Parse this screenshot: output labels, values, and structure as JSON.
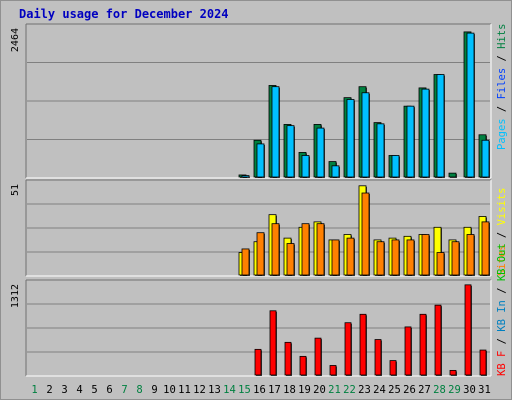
{
  "title": "Daily usage for December 2024",
  "days": [
    "1",
    "2",
    "3",
    "4",
    "5",
    "6",
    "7",
    "8",
    "9",
    "10",
    "11",
    "12",
    "13",
    "14",
    "15",
    "16",
    "17",
    "18",
    "19",
    "20",
    "21",
    "22",
    "23",
    "24",
    "25",
    "26",
    "27",
    "28",
    "29",
    "30",
    "31"
  ],
  "weekend_days": [
    "1",
    "7",
    "8",
    "14",
    "15",
    "21",
    "22",
    "28",
    "29"
  ],
  "colors": {
    "hits": "#008040",
    "files": "#0040FF",
    "pages": "#00C0FF",
    "visits": "#FFFF00",
    "sites": "#FF8000",
    "kb_in": "#0080C0",
    "kb_out": "#00C000",
    "kbf": "#FF0000",
    "weekend_label": "#008040",
    "weekday_label": "#000000"
  },
  "chart_data": [
    {
      "type": "bar",
      "panel": "hits-files-pages",
      "ymax_label": "2464",
      "ylim": [
        0,
        2464
      ],
      "legend": [
        {
          "label": "Hits",
          "key": "hits"
        },
        {
          "label": "Files",
          "key": "files"
        },
        {
          "label": "Pages",
          "key": "pages"
        }
      ],
      "categories": [
        "1",
        "2",
        "3",
        "4",
        "5",
        "6",
        "7",
        "8",
        "9",
        "10",
        "11",
        "12",
        "13",
        "14",
        "15",
        "16",
        "17",
        "18",
        "19",
        "20",
        "21",
        "22",
        "23",
        "24",
        "25",
        "26",
        "27",
        "28",
        "29",
        "30",
        "31"
      ],
      "series": [
        {
          "name": "Hits",
          "key": "hits",
          "values": [
            0,
            0,
            0,
            0,
            0,
            0,
            0,
            0,
            0,
            0,
            0,
            0,
            0,
            0,
            50,
            620,
            1520,
            880,
            420,
            880,
            270,
            1320,
            1500,
            910,
            370,
            1180,
            1480,
            1700,
            80,
            2400,
            710
          ]
        },
        {
          "name": "Pages",
          "key": "pages",
          "values": [
            0,
            0,
            0,
            0,
            0,
            0,
            0,
            0,
            0,
            0,
            0,
            0,
            0,
            0,
            40,
            560,
            1500,
            860,
            370,
            820,
            200,
            1290,
            1400,
            890,
            370,
            1180,
            1460,
            1700,
            30,
            2380,
            620
          ]
        }
      ]
    },
    {
      "type": "bar",
      "panel": "visits-sites",
      "ymax_label": "51",
      "ylim": [
        0,
        51
      ],
      "legend": [
        {
          "label": "Visits",
          "key": "visits"
        },
        {
          "label": "Sites",
          "key": "sites"
        }
      ],
      "categories": [
        "1",
        "2",
        "3",
        "4",
        "5",
        "6",
        "7",
        "8",
        "9",
        "10",
        "11",
        "12",
        "13",
        "14",
        "15",
        "16",
        "17",
        "18",
        "19",
        "20",
        "21",
        "22",
        "23",
        "24",
        "25",
        "26",
        "27",
        "28",
        "29",
        "30",
        "31"
      ],
      "series": [
        {
          "name": "Visits",
          "key": "visits",
          "values": [
            0,
            0,
            0,
            0,
            0,
            0,
            0,
            0,
            0,
            0,
            0,
            0,
            0,
            0,
            13,
            19,
            34,
            21,
            27,
            30,
            20,
            23,
            50,
            20,
            21,
            22,
            23,
            27,
            20,
            27,
            33
          ]
        },
        {
          "name": "Sites",
          "key": "sites",
          "values": [
            0,
            0,
            0,
            0,
            0,
            0,
            0,
            0,
            0,
            0,
            0,
            0,
            0,
            0,
            15,
            24,
            29,
            18,
            29,
            29,
            20,
            21,
            46,
            19,
            20,
            20,
            23,
            13,
            19,
            23,
            30
          ]
        }
      ]
    },
    {
      "type": "bar",
      "panel": "kbf-kbin-kbout",
      "ymax_label": "1312",
      "ylim": [
        0,
        1312
      ],
      "legend": [
        {
          "label": "KB In",
          "key": "kb_in"
        },
        {
          "label": "KB Out",
          "key": "kb_out"
        },
        {
          "label": "KB F",
          "key": "kbf"
        }
      ],
      "categories": [
        "1",
        "2",
        "3",
        "4",
        "5",
        "6",
        "7",
        "8",
        "9",
        "10",
        "11",
        "12",
        "13",
        "14",
        "15",
        "16",
        "17",
        "18",
        "19",
        "20",
        "21",
        "22",
        "23",
        "24",
        "25",
        "26",
        "27",
        "28",
        "29",
        "30",
        "31"
      ],
      "series": [
        {
          "name": "KB F",
          "key": "kbf",
          "values": [
            0,
            0,
            0,
            0,
            0,
            0,
            0,
            0,
            0,
            0,
            0,
            0,
            0,
            0,
            20,
            380,
            930,
            480,
            280,
            540,
            150,
            760,
            880,
            520,
            220,
            700,
            880,
            1010,
            80,
            1300,
            370
          ]
        }
      ]
    }
  ]
}
